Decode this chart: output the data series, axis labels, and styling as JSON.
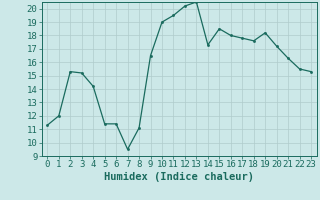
{
  "x": [
    0,
    1,
    2,
    3,
    4,
    5,
    6,
    7,
    8,
    9,
    10,
    11,
    12,
    13,
    14,
    15,
    16,
    17,
    18,
    19,
    20,
    21,
    22,
    23
  ],
  "y": [
    11.3,
    12.0,
    15.3,
    15.2,
    14.2,
    11.4,
    11.4,
    9.5,
    11.1,
    16.5,
    19.0,
    19.5,
    20.2,
    20.5,
    17.3,
    18.5,
    18.0,
    17.8,
    17.6,
    18.2,
    17.2,
    16.3,
    15.5,
    15.3
  ],
  "line_color": "#1a6b5e",
  "marker_color": "#1a6b5e",
  "bg_color": "#cce8e8",
  "grid_major_color": "#b0cccc",
  "grid_minor_color": "#c0dcdc",
  "xlabel": "Humidex (Indice chaleur)",
  "xlim": [
    -0.5,
    23.5
  ],
  "ylim": [
    9,
    20.5
  ],
  "yticks": [
    9,
    10,
    11,
    12,
    13,
    14,
    15,
    16,
    17,
    18,
    19,
    20
  ],
  "xticks": [
    0,
    1,
    2,
    3,
    4,
    5,
    6,
    7,
    8,
    9,
    10,
    11,
    12,
    13,
    14,
    15,
    16,
    17,
    18,
    19,
    20,
    21,
    22,
    23
  ],
  "tick_color": "#1a6b5e",
  "label_fontsize": 7.5,
  "tick_fontsize": 6.5
}
